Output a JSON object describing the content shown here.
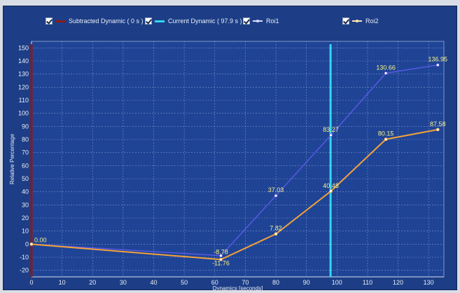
{
  "chart_data": {
    "type": "line",
    "xlabel": "Dynamics [seconds]",
    "ylabel": "Relative Percentage",
    "xlim": [
      0,
      135
    ],
    "ylim": [
      -25,
      155
    ],
    "x_ticks": [
      0,
      10,
      20,
      30,
      40,
      50,
      60,
      70,
      80,
      90,
      100,
      110,
      120,
      130
    ],
    "y_ticks": [
      -20,
      -10,
      0,
      10,
      20,
      30,
      40,
      50,
      60,
      70,
      80,
      90,
      100,
      110,
      120,
      130,
      140,
      150
    ],
    "grid": true,
    "legend_position": "top",
    "legend": [
      {
        "label": "Subtracted Dynamic ( 0 s )",
        "color": "#8b1a1a",
        "checked": true
      },
      {
        "label": "Current Dynamic ( 97.9 s )",
        "color": "#33d6f0",
        "checked": true
      },
      {
        "label": "Roi1",
        "color": "#5a5ae6",
        "checked": true
      },
      {
        "label": "Roi2",
        "color": "#f2a23a",
        "checked": true
      }
    ],
    "vertical_lines": [
      {
        "name": "Subtracted Dynamic ( 0 s )",
        "x": 0,
        "color": "#8b1a1a"
      },
      {
        "name": "Current Dynamic ( 97.9 s )",
        "x": 97.9,
        "color": "#33d6f0"
      }
    ],
    "series": [
      {
        "name": "Roi1",
        "color": "#5a5ae6",
        "points": [
          {
            "x": 0,
            "y": 0.0,
            "label": "0.00"
          },
          {
            "x": 62,
            "y": -8.78,
            "label": "-8.78"
          },
          {
            "x": 80,
            "y": 37.03,
            "label": "37.03"
          },
          {
            "x": 98,
            "y": 83.27,
            "label": "83.27"
          },
          {
            "x": 116,
            "y": 130.66,
            "label": "130.66"
          },
          {
            "x": 133,
            "y": 136.95,
            "label": "136.95"
          }
        ]
      },
      {
        "name": "Roi2",
        "color": "#f2a23a",
        "points": [
          {
            "x": 0,
            "y": 0.0,
            "label": ""
          },
          {
            "x": 62,
            "y": -11.76,
            "label": "-11.76"
          },
          {
            "x": 80,
            "y": 7.82,
            "label": "7.82"
          },
          {
            "x": 98,
            "y": 40.48,
            "label": "40.48"
          },
          {
            "x": 116,
            "y": 80.15,
            "label": "80.15"
          },
          {
            "x": 133,
            "y": 87.58,
            "label": "87.58"
          }
        ]
      }
    ]
  }
}
